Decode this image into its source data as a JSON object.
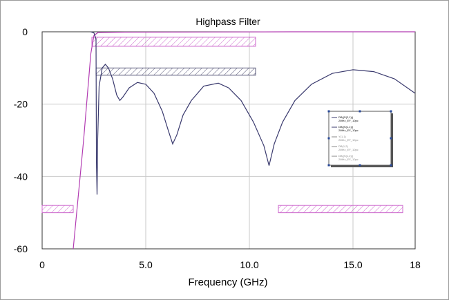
{
  "chart_data": {
    "type": "line",
    "title": "Highpass Filter",
    "xlabel": "Frequency (GHz)",
    "ylabel": "",
    "xlim": [
      0,
      18
    ],
    "ylim": [
      -60,
      0
    ],
    "x_ticks": [
      0,
      5,
      10,
      15,
      18
    ],
    "x_tick_labels": [
      "0",
      "5.0",
      "10.0",
      "15.0",
      "18"
    ],
    "y_ticks": [
      0,
      -20,
      -40,
      -60
    ],
    "y_tick_labels": [
      "0",
      "-20",
      "-40",
      "-60"
    ],
    "grid": true,
    "colors": {
      "s21": "#b23bb2",
      "s11": "#3a3a6e",
      "mask": "#cc66cc",
      "mask_dark": "#555577"
    },
    "series": [
      {
        "name": "DB(|S(2,1)|) 2MHz_EF_10pc",
        "color": "#b23bb2",
        "points": [
          [
            1.5,
            -60
          ],
          [
            2.0,
            -30
          ],
          [
            2.35,
            -6
          ],
          [
            2.5,
            -1
          ],
          [
            2.7,
            -0.2
          ],
          [
            4,
            -0.1
          ],
          [
            8,
            -0.05
          ],
          [
            12,
            0
          ],
          [
            18,
            0
          ]
        ]
      },
      {
        "name": "DB(|S(1,1)|) 2MHz_EF_10pc",
        "color": "#3a3a6e",
        "points": [
          [
            2.35,
            0
          ],
          [
            2.5,
            -0.3
          ],
          [
            2.6,
            -2
          ],
          [
            2.62,
            -36
          ],
          [
            2.65,
            -45
          ],
          [
            2.68,
            -30
          ],
          [
            2.75,
            -15
          ],
          [
            2.9,
            -10
          ],
          [
            3.05,
            -9
          ],
          [
            3.2,
            -10
          ],
          [
            3.4,
            -13
          ],
          [
            3.6,
            -17.5
          ],
          [
            3.75,
            -19
          ],
          [
            3.9,
            -18
          ],
          [
            4.2,
            -15.5
          ],
          [
            4.6,
            -14
          ],
          [
            5.0,
            -14.5
          ],
          [
            5.4,
            -17
          ],
          [
            5.8,
            -22
          ],
          [
            6.1,
            -27.5
          ],
          [
            6.3,
            -31
          ],
          [
            6.5,
            -28.5
          ],
          [
            6.8,
            -23
          ],
          [
            7.2,
            -19
          ],
          [
            7.8,
            -15
          ],
          [
            8.5,
            -14.2
          ],
          [
            9.0,
            -15.5
          ],
          [
            9.6,
            -19
          ],
          [
            10.2,
            -25
          ],
          [
            10.7,
            -31.5
          ],
          [
            10.95,
            -37
          ],
          [
            11.2,
            -31
          ],
          [
            11.6,
            -25
          ],
          [
            12.2,
            -19
          ],
          [
            13.0,
            -14.5
          ],
          [
            14.0,
            -11.5
          ],
          [
            15.0,
            -10.5
          ],
          [
            16.0,
            -11
          ],
          [
            17.0,
            -13
          ],
          [
            18.0,
            -17
          ]
        ]
      }
    ],
    "masks": [
      {
        "x": [
          2.4,
          10.3
        ],
        "y": [
          -1.5,
          -4
        ],
        "style": "pink"
      },
      {
        "x": [
          2.6,
          10.3
        ],
        "y": [
          -10,
          -12
        ],
        "style": "dark"
      },
      {
        "x": [
          0,
          1.5
        ],
        "y": [
          -48,
          -50
        ],
        "style": "pink"
      },
      {
        "x": [
          11.4,
          17.4
        ],
        "y": [
          -48,
          -50
        ],
        "style": "pink"
      }
    ],
    "legend": {
      "placement": "center-right",
      "entries": [
        {
          "text": "DB(|S(2,1)|)",
          "sub": "2MHz_EF_10pc",
          "color": "#3a3a6e",
          "active": true
        },
        {
          "text": "DB(|S(1,1)|)",
          "sub": "2MHz_EF_10pc",
          "color": "#3a3a6e",
          "active": true
        },
        {
          "text": "Y(1,1)",
          "sub": "2MHz_EF_10pc",
          "color": "#888888",
          "active": false
        },
        {
          "text": "DB(1,2)",
          "sub": "2MHz_EF_10pc",
          "color": "#888888",
          "active": false
        },
        {
          "text": "DB(|S(1,2)|)",
          "sub": "2MHz_EF_10pc",
          "color": "#888888",
          "active": false
        }
      ]
    }
  }
}
